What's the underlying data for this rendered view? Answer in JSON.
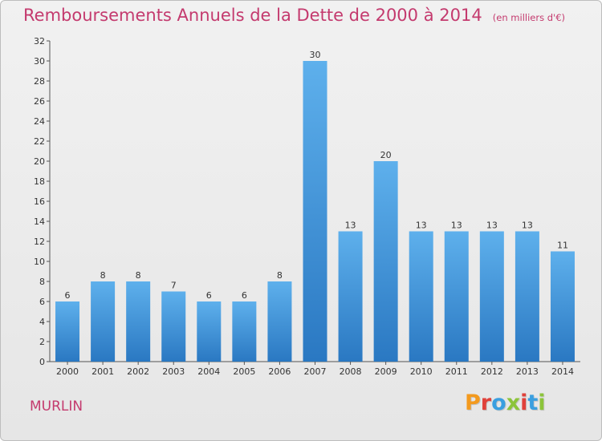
{
  "chart_data": {
    "type": "bar",
    "title": "Remboursements Annuels de la Dette de 2000 à 2014",
    "subtitle": "(en milliers d'€)",
    "categories": [
      "2000",
      "2001",
      "2002",
      "2003",
      "2004",
      "2005",
      "2006",
      "2007",
      "2008",
      "2009",
      "2010",
      "2011",
      "2012",
      "2013",
      "2014"
    ],
    "values": [
      6,
      8,
      8,
      7,
      6,
      6,
      8,
      30,
      13,
      20,
      13,
      13,
      13,
      13,
      11
    ],
    "ylim": [
      0,
      32
    ],
    "yticks": [
      0,
      2,
      4,
      6,
      8,
      10,
      12,
      14,
      16,
      18,
      20,
      22,
      24,
      26,
      28,
      30,
      32
    ],
    "grid": false,
    "bar_color": "#3e8fd6"
  },
  "footer": {
    "commune": "MURLIN",
    "brand": "Proxiti"
  },
  "colors": {
    "title": "#c43a6e",
    "brand_letters": [
      "#f39a1e",
      "#e0413a",
      "#3a9fe0",
      "#8cc43a",
      "#e0413a",
      "#3a9fe0",
      "#8cc43a"
    ]
  }
}
